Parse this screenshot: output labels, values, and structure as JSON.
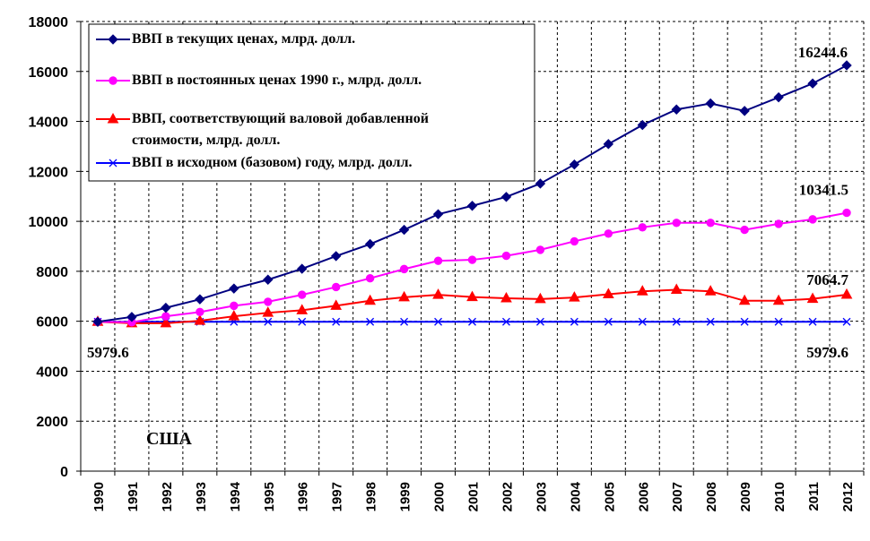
{
  "chart_data": {
    "type": "line",
    "title": "",
    "xlabel": "",
    "ylabel": "",
    "ylim": [
      0,
      18000
    ],
    "yticks": [
      0,
      2000,
      4000,
      6000,
      8000,
      10000,
      12000,
      14000,
      16000,
      18000
    ],
    "categories": [
      "1990",
      "1991",
      "1992",
      "1993",
      "1994",
      "1995",
      "1996",
      "1997",
      "1998",
      "1999",
      "2000",
      "2001",
      "2002",
      "2003",
      "2004",
      "2005",
      "2006",
      "2007",
      "2008",
      "2009",
      "2010",
      "2011",
      "2012"
    ],
    "grid": true,
    "legend_position": "top-left",
    "series": [
      {
        "name": "ВВП в текущих ценах, млрд. долл.",
        "color": "#000080",
        "marker": "diamond",
        "values": [
          5979.6,
          6174.0,
          6539.3,
          6878.7,
          7308.8,
          7664.1,
          8100.2,
          8608.5,
          9089.2,
          9660.6,
          10284.8,
          10621.8,
          10977.5,
          11510.7,
          12274.9,
          13093.7,
          13855.9,
          14477.6,
          14718.6,
          14418.7,
          14964.4,
          15517.9,
          16244.6
        ]
      },
      {
        "name": "ВВП в постоянных ценах 1990 г., млрд. долл.",
        "color": "#ff00ff",
        "marker": "circle",
        "values": [
          5979.6,
          5960.0,
          6200.0,
          6370.0,
          6620.0,
          6780.0,
          7060.0,
          7370.0,
          7720.0,
          8090.0,
          8420.0,
          8460.0,
          8620.0,
          8860.0,
          9200.0,
          9510.0,
          9760.0,
          9940.0,
          9940.0,
          9660.0,
          9900.0,
          10080.0,
          10341.5
        ]
      },
      {
        "name": "ВВП, соответствующий валовой  добавленной стоимости, млрд. долл.",
        "color": "#ff0000",
        "marker": "triangle",
        "values": [
          5979.6,
          5920.0,
          5920.0,
          6020.0,
          6200.0,
          6340.0,
          6440.0,
          6620.0,
          6820.0,
          6960.0,
          7060.0,
          6970.0,
          6920.0,
          6890.0,
          6950.0,
          7080.0,
          7200.0,
          7260.0,
          7200.0,
          6820.0,
          6820.0,
          6900.0,
          7064.7
        ]
      },
      {
        "name": "ВВП в исходном (базовом) году, млрд. долл.",
        "color": "#0000ff",
        "marker": "x",
        "values": [
          5979.6,
          5979.6,
          5979.6,
          5979.6,
          5979.6,
          5979.6,
          5979.6,
          5979.6,
          5979.6,
          5979.6,
          5979.6,
          5979.6,
          5979.6,
          5979.6,
          5979.6,
          5979.6,
          5979.6,
          5979.6,
          5979.6,
          5979.6,
          5979.6,
          5979.6,
          5979.6
        ]
      }
    ],
    "annotations": [
      {
        "text": "16244.6",
        "series": 0,
        "index": 22
      },
      {
        "text": "10341.5",
        "series": 1,
        "index": 22
      },
      {
        "text": "7064.7",
        "series": 2,
        "index": 22
      },
      {
        "text": "5979.6",
        "series": 3,
        "index": 0
      },
      {
        "text": "5979.6",
        "series": 3,
        "index": 22
      }
    ],
    "country_label": "США"
  }
}
